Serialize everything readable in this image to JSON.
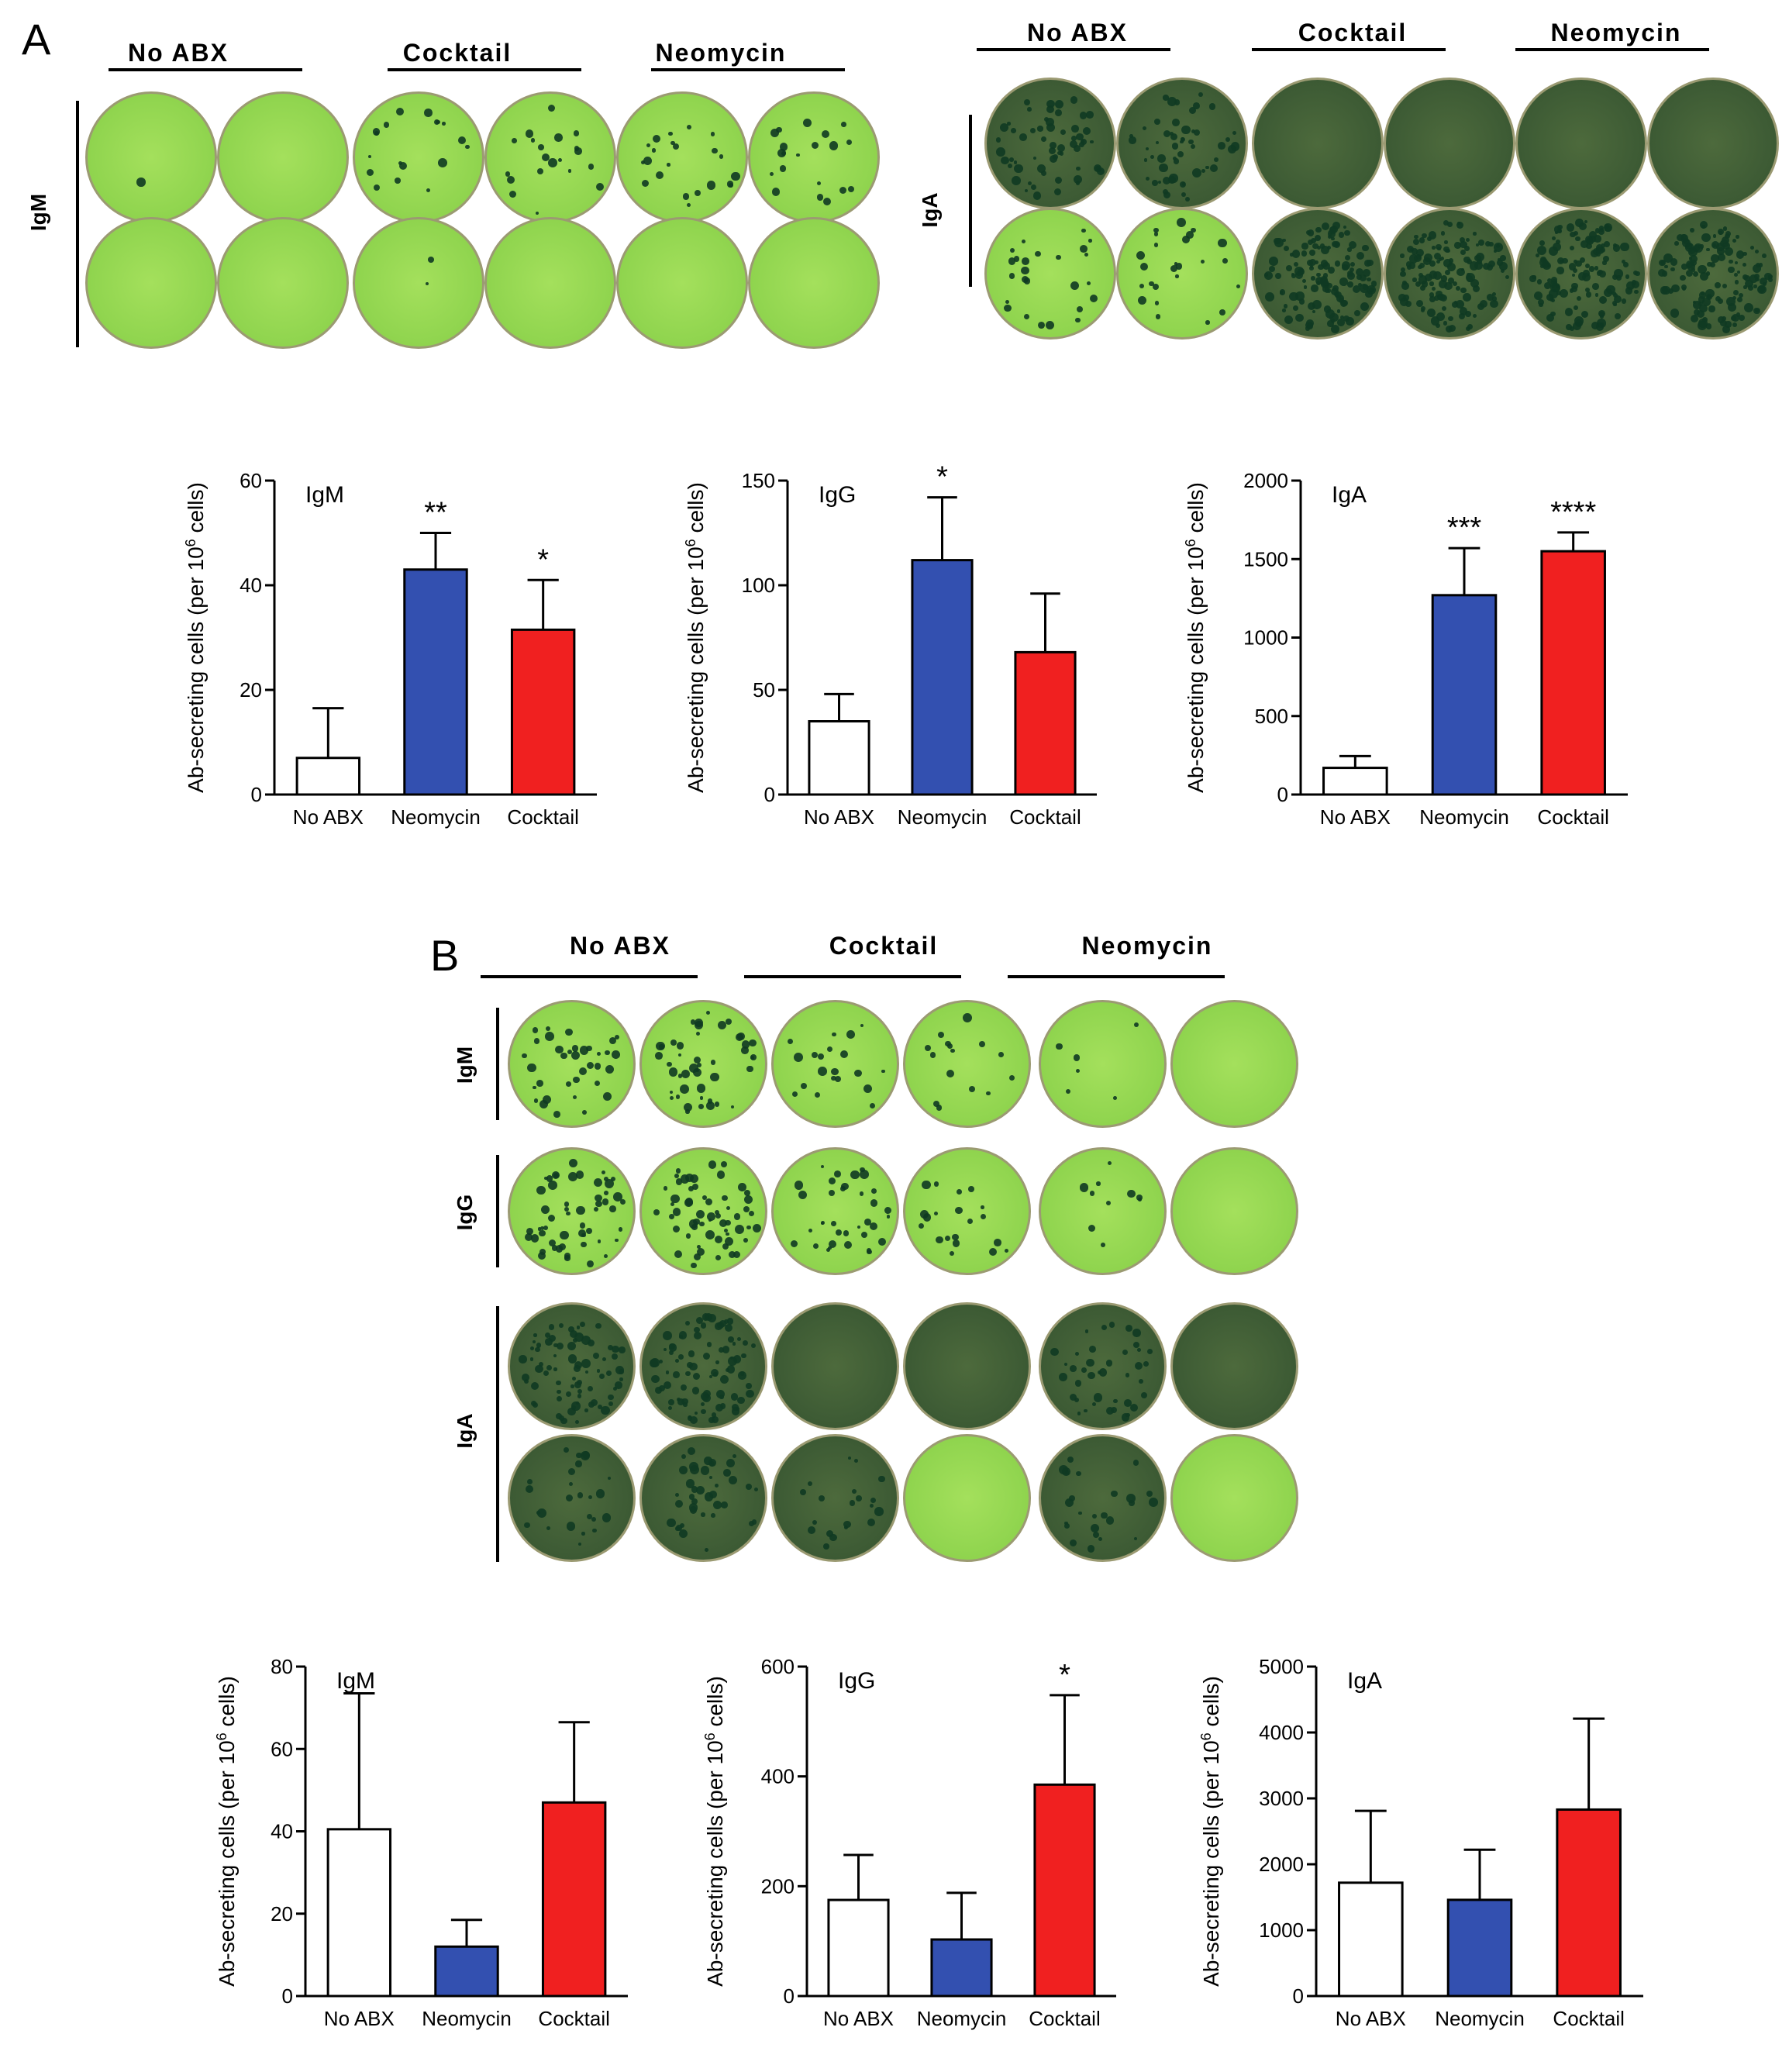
{
  "panel_a_label": "A",
  "panel_b_label": "B",
  "plates": {
    "a_left": {
      "groups": [
        "No ABX",
        "Cocktail",
        "Neomycin"
      ],
      "rows": [
        "IgM"
      ]
    },
    "a_right": {
      "groups": [
        "No ABX",
        "Cocktail",
        "Neomycin"
      ],
      "rows": [
        "IgA"
      ]
    },
    "b": {
      "groups": [
        "No ABX",
        "Cocktail",
        "Neomycin"
      ],
      "rows": [
        "IgM",
        "IgG",
        "IgA"
      ]
    }
  },
  "colors": {
    "no_abx": "#ffffff",
    "neomycin": "#3350b0",
    "cocktail": "#f02020",
    "well_green": "#8cd24a",
    "well_dark": "#2e4a2a"
  },
  "chart_data": [
    {
      "type": "bar",
      "panel": "A",
      "title": "IgM",
      "ylabel": "Ab-secreting cells (per 10^6 cells)",
      "categories": [
        "No ABX",
        "Neomycin",
        "Cocktail"
      ],
      "values": [
        7,
        43,
        31.5
      ],
      "errors": [
        9.5,
        7,
        9.5
      ],
      "significance": [
        "",
        "**",
        "*"
      ],
      "ylim": [
        0,
        60
      ],
      "yticks": [
        0,
        20,
        40,
        60
      ]
    },
    {
      "type": "bar",
      "panel": "A",
      "title": "IgG",
      "ylabel": "Ab-secreting cells (per 10^6 cells)",
      "categories": [
        "No ABX",
        "Neomycin",
        "Cocktail"
      ],
      "values": [
        35,
        112,
        68
      ],
      "errors": [
        13,
        30,
        28
      ],
      "significance": [
        "",
        "*",
        ""
      ],
      "ylim": [
        0,
        150
      ],
      "yticks": [
        0,
        50,
        100,
        150
      ]
    },
    {
      "type": "bar",
      "panel": "A",
      "title": "IgA",
      "ylabel": "Ab-secreting cells (per 10^6 cells)",
      "categories": [
        "No ABX",
        "Neomycin",
        "Cocktail"
      ],
      "values": [
        170,
        1270,
        1550
      ],
      "errors": [
        75,
        300,
        120
      ],
      "significance": [
        "",
        "***",
        "****"
      ],
      "ylim": [
        0,
        2000
      ],
      "yticks": [
        0,
        500,
        1000,
        1500,
        2000
      ]
    },
    {
      "type": "bar",
      "panel": "B",
      "title": "IgM",
      "ylabel": "Ab-secreting cells (per 10^6 cells)",
      "categories": [
        "No ABX",
        "Neomycin",
        "Cocktail"
      ],
      "values": [
        40.5,
        12,
        47
      ],
      "errors": [
        33,
        6.5,
        19.5
      ],
      "significance": [
        "",
        "",
        ""
      ],
      "ylim": [
        0,
        80
      ],
      "yticks": [
        0,
        20,
        40,
        60,
        80
      ]
    },
    {
      "type": "bar",
      "panel": "B",
      "title": "IgG",
      "ylabel": "Ab-secreting cells (per 10^6 cells)",
      "categories": [
        "No ABX",
        "Neomycin",
        "Cocktail"
      ],
      "values": [
        175,
        103,
        385
      ],
      "errors": [
        82,
        85,
        163
      ],
      "significance": [
        "",
        "",
        "*"
      ],
      "ylim": [
        0,
        600
      ],
      "yticks": [
        0,
        200,
        400,
        600
      ]
    },
    {
      "type": "bar",
      "panel": "B",
      "title": "IgA",
      "ylabel": "Ab-secreting cells (per 10^6 cells)",
      "categories": [
        "No ABX",
        "Neomycin",
        "Cocktail"
      ],
      "values": [
        1720,
        1460,
        2830
      ],
      "errors": [
        1090,
        760,
        1380
      ],
      "significance": [
        "",
        "",
        ""
      ],
      "ylim": [
        0,
        5000
      ],
      "yticks": [
        0,
        1000,
        2000,
        3000,
        4000,
        5000
      ]
    }
  ]
}
